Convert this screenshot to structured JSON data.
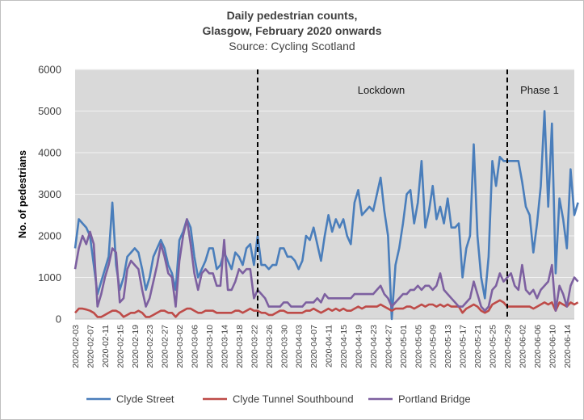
{
  "chart_data": {
    "type": "line",
    "title_line1": "Daily pedestrian counts,",
    "title_line2": "Glasgow, February  2020 onwards",
    "subtitle": "Source: Cycling Scotland",
    "ylabel": "No. of pedestrians",
    "xlabel": "",
    "ylim": [
      0,
      6000
    ],
    "y_ticks": [
      "0",
      "1000",
      "2000",
      "3000",
      "4000",
      "5000",
      "6000"
    ],
    "x_start": "2020-02-03",
    "x_end": "2020-06-16",
    "x_ticks": [
      "2020-02-03",
      "2020-02-07",
      "2020-02-11",
      "2020-02-15",
      "2020-02-19",
      "2020-02-23",
      "2020-02-27",
      "2020-03-02",
      "2020-03-06",
      "2020-03-10",
      "2020-03-14",
      "2020-03-18",
      "2020-03-22",
      "2020-03-26",
      "2020-03-30",
      "2020-04-03",
      "2020-04-07",
      "2020-04-11",
      "2020-04-15",
      "2020-04-19",
      "2020-04-23",
      "2020-04-27",
      "2020-05-01",
      "2020-05-05",
      "2020-05-09",
      "2020-05-13",
      "2020-05-17",
      "2020-05-21",
      "2020-05-25",
      "2020-05-29",
      "2020-06-02",
      "2020-06-06",
      "2020-06-10",
      "2020-06-14"
    ],
    "grid": true,
    "legend_position": "bottom",
    "annotations": [
      {
        "label": "Lockdown",
        "date": "2020-03-23"
      },
      {
        "label": "Phase 1",
        "date": "2020-05-29"
      }
    ],
    "series": [
      {
        "name": "Clyde Street",
        "color": "#4a7ebb",
        "values": [
          1700,
          2400,
          2300,
          2200,
          2000,
          1300,
          600,
          900,
          1200,
          1500,
          2800,
          1300,
          700,
          1000,
          1500,
          1600,
          1700,
          1600,
          1200,
          700,
          1000,
          1500,
          1700,
          1900,
          1700,
          1300,
          1100,
          700,
          1900,
          2100,
          2400,
          2200,
          1500,
          1000,
          1200,
          1400,
          1700,
          1700,
          1200,
          1300,
          1600,
          1400,
          1200,
          1600,
          1500,
          1300,
          1700,
          1800,
          1300,
          2000,
          1300,
          1300,
          1200,
          1300,
          1300,
          1700,
          1700,
          1500,
          1500,
          1400,
          1200,
          1400,
          2000,
          1900,
          2200,
          1800,
          1400,
          2000,
          2500,
          2100,
          2400,
          2200,
          2400,
          2000,
          1800,
          2800,
          3100,
          2500,
          2600,
          2700,
          2600,
          3000,
          3400,
          2600,
          2000,
          0,
          1300,
          1700,
          2300,
          3000,
          3100,
          2300,
          2800,
          3800,
          2200,
          2600,
          3200,
          2400,
          2700,
          2300,
          2900,
          2200,
          2200,
          2300,
          1000,
          1700,
          2000,
          4200,
          2000,
          1000,
          500,
          1500,
          3800,
          3200,
          3900,
          3800,
          3800,
          3800,
          3800,
          3800,
          3300,
          2700,
          2500,
          1600,
          2300,
          3200,
          5000,
          2700,
          4700,
          1100,
          2900,
          2400,
          1700,
          3600,
          2500,
          2800
        ]
      },
      {
        "name": "Clyde Tunnel Southbound",
        "color": "#be4b48",
        "values": [
          150,
          250,
          250,
          230,
          200,
          150,
          50,
          50,
          100,
          150,
          200,
          200,
          150,
          50,
          100,
          150,
          150,
          200,
          150,
          50,
          50,
          100,
          150,
          200,
          200,
          150,
          150,
          50,
          150,
          200,
          250,
          250,
          200,
          150,
          150,
          200,
          200,
          200,
          150,
          150,
          150,
          150,
          150,
          200,
          200,
          150,
          200,
          250,
          200,
          200,
          150,
          150,
          100,
          100,
          150,
          200,
          200,
          150,
          150,
          150,
          150,
          150,
          200,
          200,
          250,
          200,
          150,
          200,
          250,
          200,
          250,
          200,
          250,
          200,
          200,
          250,
          300,
          250,
          300,
          300,
          300,
          300,
          350,
          300,
          250,
          200,
          250,
          250,
          250,
          300,
          300,
          250,
          300,
          350,
          300,
          350,
          350,
          300,
          350,
          300,
          350,
          300,
          300,
          300,
          150,
          250,
          300,
          350,
          300,
          200,
          150,
          200,
          350,
          400,
          450,
          400,
          300,
          300,
          300,
          300,
          300,
          300,
          300,
          250,
          300,
          350,
          400,
          350,
          400,
          200,
          400,
          350,
          300,
          400,
          350,
          400
        ]
      },
      {
        "name": "Portland Bridge",
        "color": "#7d60a0",
        "values": [
          1200,
          1700,
          2000,
          1800,
          2100,
          1800,
          300,
          600,
          1000,
          1300,
          1700,
          1600,
          400,
          500,
          1200,
          1400,
          1300,
          1200,
          700,
          300,
          500,
          900,
          1300,
          1800,
          1500,
          1100,
          1000,
          300,
          1400,
          2000,
          2400,
          1800,
          1100,
          700,
          1100,
          1200,
          1100,
          1100,
          800,
          800,
          1900,
          700,
          700,
          900,
          1200,
          1100,
          1200,
          1200,
          500,
          700,
          600,
          500,
          300,
          300,
          300,
          300,
          400,
          400,
          300,
          300,
          300,
          300,
          400,
          400,
          400,
          500,
          400,
          600,
          500,
          500,
          500,
          500,
          500,
          500,
          500,
          600,
          600,
          600,
          600,
          600,
          600,
          700,
          800,
          600,
          500,
          300,
          400,
          500,
          600,
          600,
          700,
          700,
          800,
          700,
          800,
          800,
          700,
          800,
          1100,
          700,
          600,
          500,
          400,
          300,
          300,
          400,
          500,
          900,
          600,
          300,
          200,
          300,
          700,
          800,
          1100,
          900,
          1000,
          1100,
          800,
          700,
          1300,
          700,
          600,
          700,
          500,
          700,
          800,
          900,
          1300,
          200,
          800,
          600,
          300,
          800,
          1000,
          900
        ]
      }
    ]
  }
}
